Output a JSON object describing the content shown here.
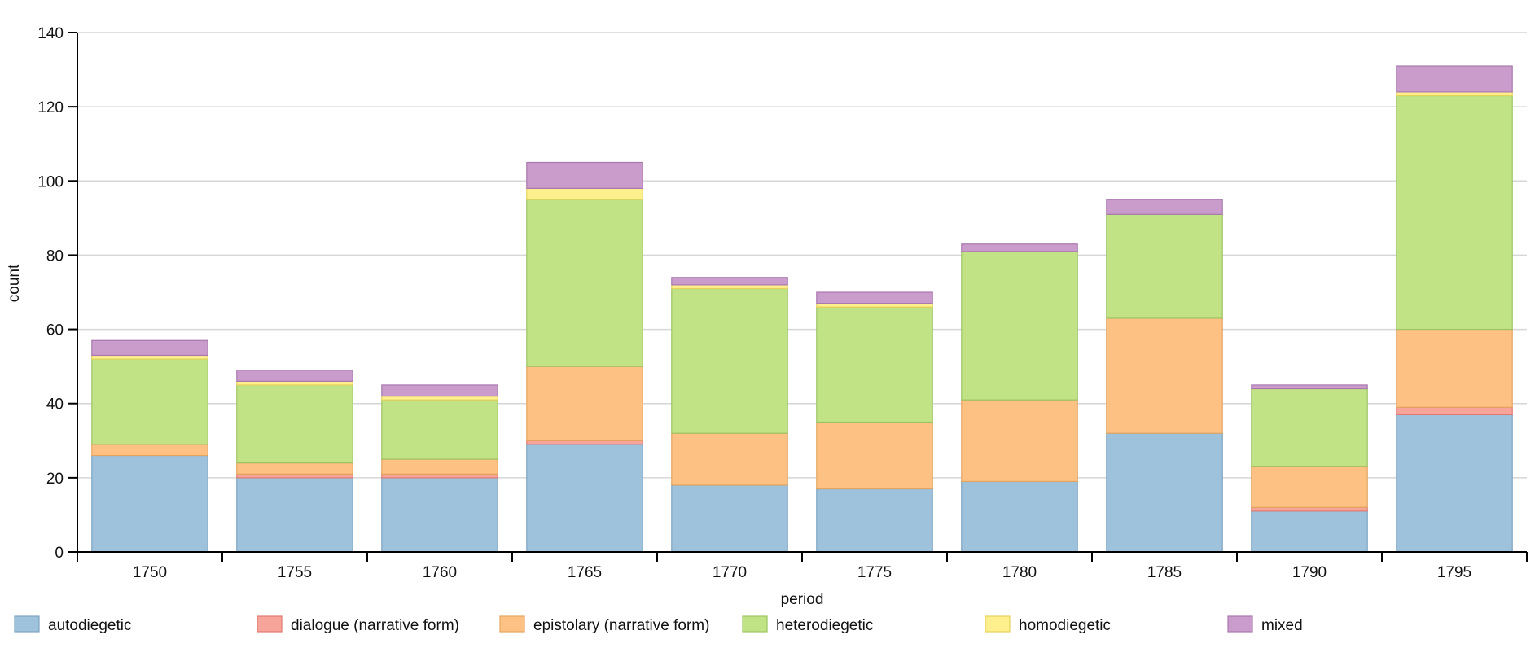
{
  "chart_data": {
    "type": "bar",
    "stacked": true,
    "xlabel": "period",
    "ylabel": "count",
    "ylim": [
      0,
      140
    ],
    "yticks": [
      0,
      20,
      40,
      60,
      80,
      100,
      120,
      140
    ],
    "grid": true,
    "legend_position": "bottom",
    "categories": [
      "1750",
      "1755",
      "1760",
      "1765",
      "1770",
      "1775",
      "1780",
      "1785",
      "1790",
      "1795"
    ],
    "series": [
      {
        "name": "autodiegetic",
        "color": "#9ec2dc",
        "stroke": "#7ba4c2",
        "values": [
          26,
          20,
          20,
          29,
          18,
          17,
          19,
          32,
          11,
          37
        ]
      },
      {
        "name": "dialogue (narrative form)",
        "color": "#f7a59b",
        "stroke": "#e07a70",
        "values": [
          0,
          1,
          1,
          1,
          0,
          0,
          0,
          0,
          1,
          2
        ]
      },
      {
        "name": "epistolary (narrative form)",
        "color": "#fdc283",
        "stroke": "#e4a45f",
        "values": [
          3,
          3,
          4,
          20,
          14,
          18,
          22,
          31,
          11,
          21
        ]
      },
      {
        "name": "heterodiegetic",
        "color": "#c2e286",
        "stroke": "#9cc462",
        "values": [
          23,
          21,
          16,
          45,
          39,
          31,
          40,
          28,
          21,
          63
        ]
      },
      {
        "name": "homodiegetic",
        "color": "#fff08e",
        "stroke": "#e7d25c",
        "values": [
          1,
          1,
          1,
          3,
          1,
          1,
          0,
          0,
          0,
          1
        ]
      },
      {
        "name": "mixed",
        "color": "#c99ccb",
        "stroke": "#a978ae",
        "values": [
          4,
          3,
          3,
          7,
          2,
          3,
          2,
          4,
          1,
          7
        ]
      }
    ]
  }
}
